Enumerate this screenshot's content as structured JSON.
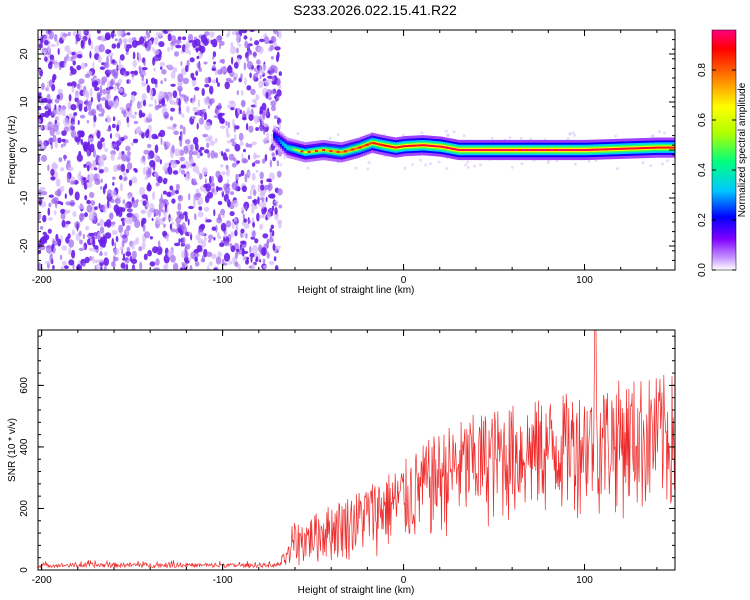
{
  "title": "S233.2026.022.15.41.R22",
  "colors": {
    "snr_line": "#ee2a2a",
    "noise_speckle": "#6a1ee8",
    "colormap": [
      "#ffffff",
      "#c896ff",
      "#7f00ff",
      "#0000ff",
      "#00c8ff",
      "#00ff80",
      "#b0ff00",
      "#ffff00",
      "#ff8000",
      "#ff0000",
      "#ff007f"
    ]
  },
  "chart_data": [
    {
      "type": "heatmap",
      "title": "S233.2026.022.15.41.R22",
      "xlabel": "Height of straight line (km)",
      "ylabel": "Frequency (Hz)",
      "xlim": [
        -202,
        150
      ],
      "ylim": [
        -25,
        25
      ],
      "xticks": [
        -200,
        -100,
        0,
        100
      ],
      "yticks": [
        -20,
        -10,
        0,
        10,
        20
      ],
      "colorbar": {
        "label": "Normalized spectral amplitude",
        "range": [
          0,
          0.96
        ],
        "ticks": [
          0.0,
          0.2,
          0.4,
          0.6,
          0.8
        ]
      },
      "noise_region_x": [
        -202,
        -68
      ],
      "ridge": {
        "description_points_x": [
          -72,
          -65,
          -55,
          -45,
          -35,
          -25,
          -18,
          -12,
          -5,
          0,
          10,
          20,
          30,
          60,
          100,
          140,
          150
        ],
        "frequency_y": [
          3,
          0.5,
          -0.5,
          0,
          -0.5,
          0.5,
          1.5,
          1.0,
          0.5,
          0.8,
          1.0,
          0.7,
          0.0,
          0.0,
          0.0,
          0.5,
          0.5
        ],
        "peak_amplitude": [
          0.3,
          0.5,
          0.65,
          0.7,
          0.75,
          0.8,
          0.85,
          0.88,
          0.9,
          0.9,
          0.92,
          0.94,
          0.95,
          0.95,
          0.95,
          0.9,
          0.9
        ]
      }
    },
    {
      "type": "line",
      "xlabel": "Height of straight line (km)",
      "ylabel": "SNR (10 * v/v)",
      "xlim": [
        -202,
        150
      ],
      "ylim": [
        0,
        780
      ],
      "xticks": [
        -200,
        -100,
        0,
        100
      ],
      "yticks": [
        0,
        200,
        400,
        600
      ],
      "envelope": {
        "x": [
          -202,
          -150,
          -100,
          -70,
          -62,
          -55,
          -45,
          -35,
          -25,
          -15,
          -5,
          5,
          15,
          25,
          40,
          60,
          80,
          100,
          120,
          150
        ],
        "upper": [
          30,
          35,
          30,
          30,
          150,
          160,
          200,
          230,
          260,
          300,
          330,
          380,
          430,
          470,
          510,
          540,
          560,
          590,
          620,
          640
        ],
        "lower": [
          0,
          0,
          0,
          0,
          5,
          10,
          15,
          20,
          30,
          40,
          50,
          60,
          80,
          100,
          120,
          140,
          150,
          170,
          160,
          150
        ]
      },
      "spike": {
        "x": 106,
        "y": 780
      }
    }
  ]
}
